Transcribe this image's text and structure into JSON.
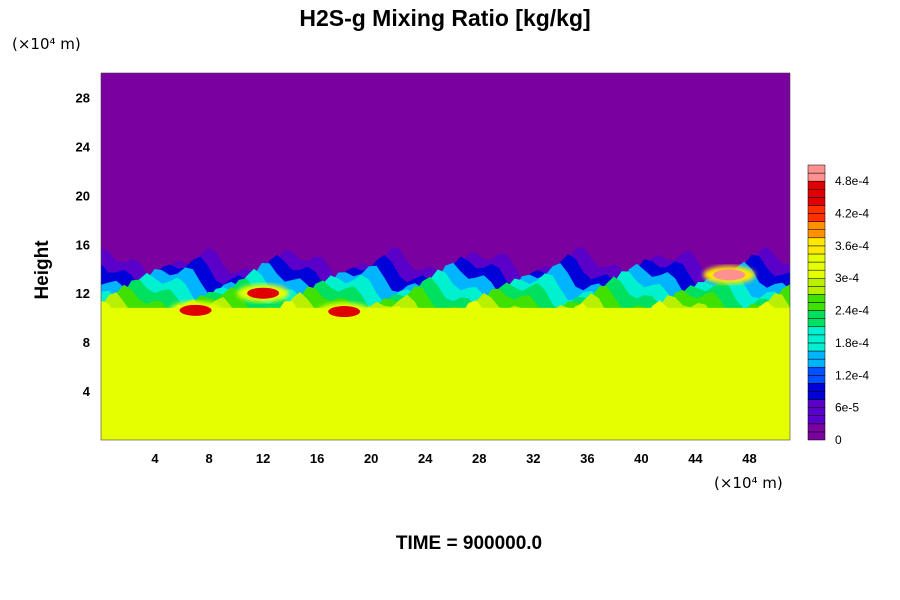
{
  "chart_data": {
    "type": "heatmap",
    "title": "H2S-g Mixing Ratio [kg/kg]",
    "ylabel": "Height",
    "x_unit_label": "(×10⁴ m)",
    "y_unit_label": "(×10⁴ m)",
    "footer": "TIME = 900000.0",
    "xlim": [
      0,
      51
    ],
    "ylim": [
      0,
      30
    ],
    "x_ticks": [
      4,
      8,
      12,
      16,
      20,
      24,
      28,
      32,
      36,
      40,
      44,
      48
    ],
    "y_ticks": [
      4,
      8,
      12,
      16,
      20,
      24,
      28
    ],
    "colorbar": {
      "min": 0,
      "max": 0.00051,
      "tick_labels": [
        "0",
        "6e-5",
        "1.2e-4",
        "1.8e-4",
        "2.4e-4",
        "3e-4",
        "3.6e-4",
        "4.2e-4",
        "4.8e-4"
      ],
      "tick_values": [
        0,
        6e-05,
        0.00012,
        0.00018,
        0.00024,
        0.0003,
        0.00036,
        0.00042,
        0.00048
      ]
    },
    "colormap": [
      "#7a00a0",
      "#5a00c8",
      "#0000d8",
      "#0050ff",
      "#00b4ff",
      "#00f0d0",
      "#00e060",
      "#40e000",
      "#b8f000",
      "#e6ff00",
      "#ffe800",
      "#ff9000",
      "#ff3000",
      "#e00000",
      "#ff9090"
    ],
    "fields": {
      "upper_layer_value": 0,
      "lower_layer_value": 0.00033,
      "mixing_layer_height_range": [
        10,
        15
      ]
    },
    "features": [
      {
        "name": "high-concentration patch",
        "x": 12,
        "y": 12,
        "value": 0.00045
      },
      {
        "name": "high-concentration patch",
        "x": 18,
        "y": 10.5,
        "value": 0.00045
      },
      {
        "name": "high-concentration patch",
        "x": 7,
        "y": 10.6,
        "value": 0.00045
      },
      {
        "name": "high-concentration patch",
        "x": 46.5,
        "y": 13.5,
        "value": 0.0005
      }
    ]
  }
}
